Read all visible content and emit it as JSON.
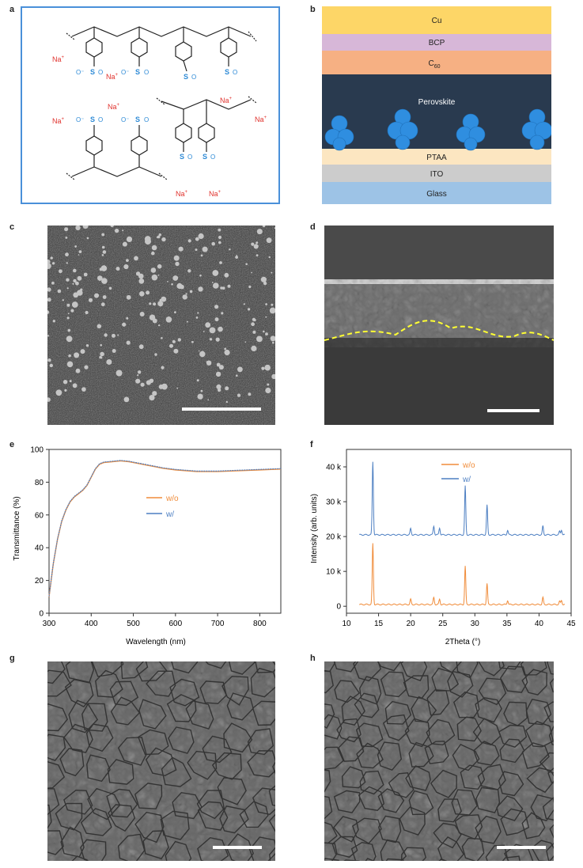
{
  "panel_letters": [
    "a",
    "b",
    "c",
    "d",
    "e",
    "f",
    "g",
    "h"
  ],
  "chem": {
    "na": "Na",
    "plus": "+",
    "sulfonate_s": "S",
    "o": "O",
    "o_minus": "O⁻"
  },
  "stack": {
    "layers": [
      {
        "name": "Cu",
        "sub": "",
        "color": "#fdd667"
      },
      {
        "name": "BCP",
        "sub": "",
        "color": "#d7b7d8"
      },
      {
        "name": "C",
        "sub": "60",
        "color": "#f6b083"
      },
      {
        "name": "Perovskite",
        "sub": "",
        "color": "#293a4f"
      },
      {
        "name": "PTAA",
        "sub": "",
        "color": "#fce6c1"
      },
      {
        "name": "ITO",
        "sub": "",
        "color": "#cccccc"
      },
      {
        "name": "Glass",
        "sub": "",
        "color": "#9dc3e6"
      }
    ]
  },
  "chart_e": {
    "type": "line",
    "xlabel": "Wavelength (nm)",
    "ylabel": "Transmittance (%)",
    "xlim": [
      300,
      850
    ],
    "ylim": [
      0,
      100
    ],
    "xticks": [
      300,
      400,
      500,
      600,
      700,
      800
    ],
    "yticks": [
      0,
      20,
      40,
      60,
      80,
      100
    ],
    "legend": [
      "w/o",
      "w/"
    ],
    "colors": [
      "#f08c3a",
      "#4d7fc2"
    ],
    "x": [
      300,
      310,
      320,
      330,
      340,
      350,
      360,
      370,
      380,
      390,
      400,
      410,
      420,
      430,
      450,
      470,
      490,
      510,
      530,
      550,
      570,
      600,
      650,
      700,
      750,
      800,
      850
    ],
    "y": [
      10,
      30,
      45,
      56,
      63,
      68,
      71,
      73,
      75,
      78,
      83,
      88,
      91,
      92,
      92.5,
      93,
      92.5,
      91.5,
      90.5,
      89.5,
      88.5,
      87.5,
      86.5,
      86.5,
      87,
      87.5,
      88
    ]
  },
  "chart_f": {
    "type": "line",
    "xlabel": "2Theta (°)",
    "ylabel": "Intensity (arb. units)",
    "xlim": [
      10,
      45
    ],
    "ylim": [
      -2000,
      45000
    ],
    "xticks": [
      10,
      15,
      20,
      25,
      30,
      35,
      40,
      45
    ],
    "yticks": [
      0,
      10000,
      20000,
      30000,
      40000
    ],
    "ytick_labels": [
      "0",
      "10 k",
      "20 k",
      "30 k",
      "40 k"
    ],
    "legend": [
      "w/o",
      "w/"
    ],
    "colors": [
      "#f08c3a",
      "#4d7fc2"
    ],
    "offsets": [
      500,
      20500
    ],
    "peaks": [
      {
        "x": 14.1,
        "h": [
          17500,
          21000
        ]
      },
      {
        "x": 20.0,
        "h": [
          1500,
          1800
        ]
      },
      {
        "x": 23.6,
        "h": [
          2000,
          2500
        ]
      },
      {
        "x": 24.5,
        "h": [
          1500,
          2000
        ]
      },
      {
        "x": 28.5,
        "h": [
          11000,
          14000
        ]
      },
      {
        "x": 31.9,
        "h": [
          6000,
          8500
        ]
      },
      {
        "x": 35.1,
        "h": [
          1200,
          1300
        ]
      },
      {
        "x": 40.6,
        "h": [
          2000,
          2500
        ]
      },
      {
        "x": 43.2,
        "h": [
          900,
          1000
        ]
      },
      {
        "x": 43.5,
        "h": [
          1200,
          1400
        ]
      }
    ]
  }
}
